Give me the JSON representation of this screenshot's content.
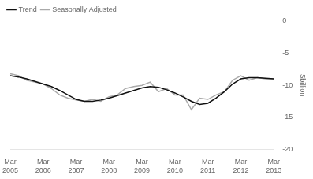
{
  "chart_data": {
    "type": "line",
    "ylabel": "$billion",
    "categories": [
      "Mar\n2005",
      null,
      null,
      null,
      "Mar\n2006",
      null,
      null,
      null,
      "Mar\n2007",
      null,
      null,
      null,
      "Mar\n2008",
      null,
      null,
      null,
      "Mar\n2009",
      null,
      null,
      null,
      "Mar\n2010",
      null,
      null,
      null,
      "Mar\n2011",
      null,
      null,
      null,
      "Mar\n2012",
      null,
      null,
      null,
      "Mar\n2013"
    ],
    "series": [
      {
        "name": "Trend",
        "color": "#111111",
        "values": [
          -8.5,
          -8.7,
          -9.0,
          -9.4,
          -9.8,
          -10.2,
          -10.8,
          -11.5,
          -12.2,
          -12.5,
          -12.5,
          -12.3,
          -12.0,
          -11.6,
          -11.2,
          -10.8,
          -10.4,
          -10.2,
          -10.3,
          -10.7,
          -11.2,
          -11.8,
          -12.5,
          -13.0,
          -12.8,
          -12.0,
          -11.0,
          -9.8,
          -9.0,
          -8.8,
          -8.8,
          -8.9,
          -9.0
        ]
      },
      {
        "name": "Seasonally Adjusted",
        "color": "#aaaaaa",
        "values": [
          -8.2,
          -8.5,
          -9.2,
          -9.5,
          -9.8,
          -10.5,
          -11.5,
          -12.0,
          -12.3,
          -12.5,
          -12.2,
          -12.5,
          -11.8,
          -11.5,
          -10.5,
          -10.2,
          -10.0,
          -9.5,
          -11.0,
          -10.5,
          -11.5,
          -11.5,
          -13.8,
          -12.0,
          -12.2,
          -11.5,
          -11.0,
          -9.2,
          -8.5,
          -9.2,
          -8.8,
          -9.0,
          -9.0
        ]
      }
    ],
    "ylim": [
      -20,
      0
    ],
    "yticks": [
      0,
      -5,
      -10,
      -15,
      -20
    ],
    "grid": false,
    "legend": "upper left"
  }
}
